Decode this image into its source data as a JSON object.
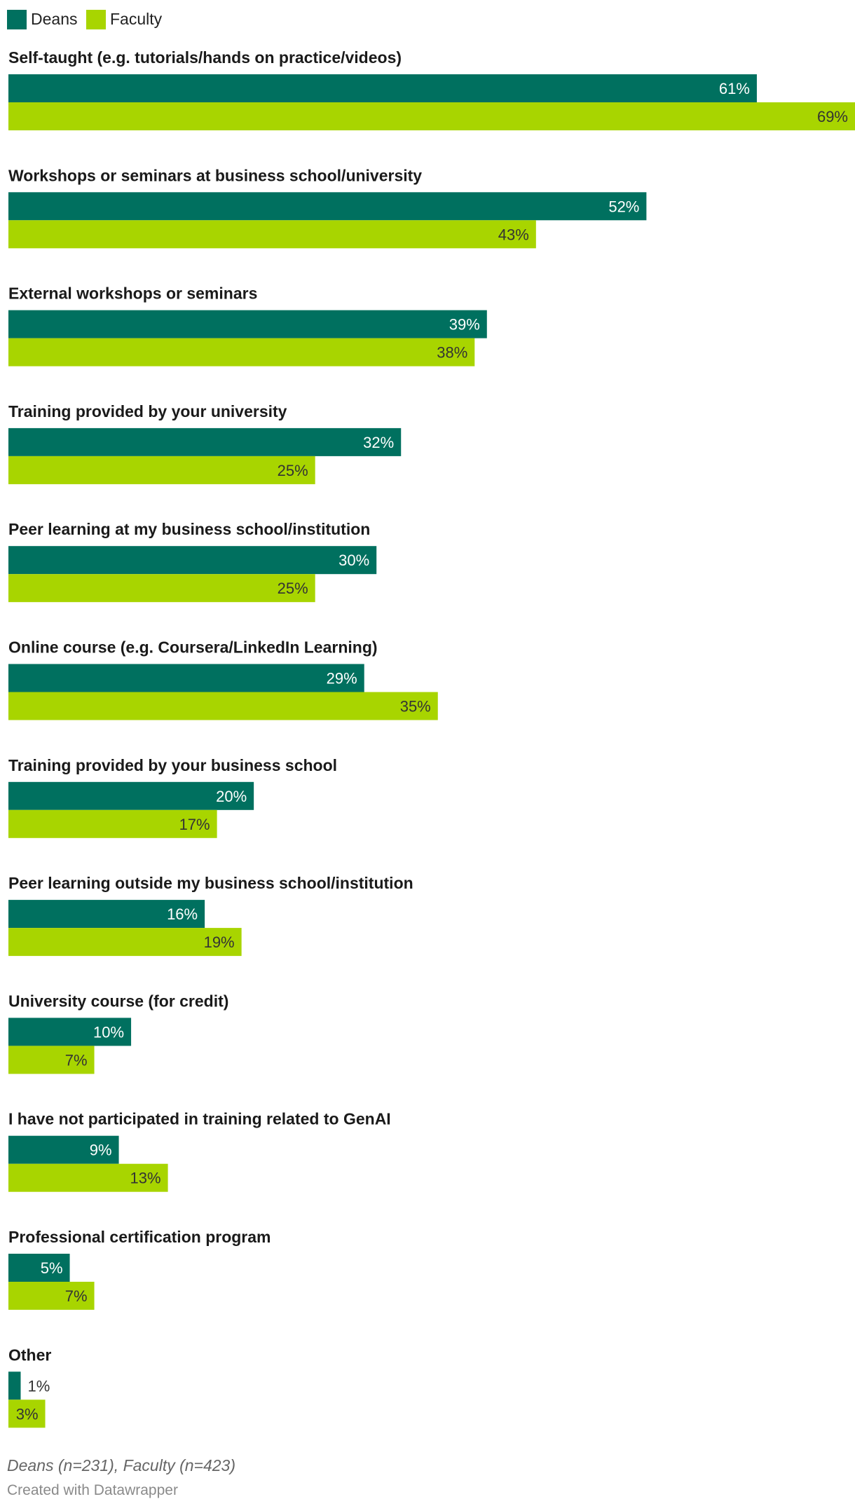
{
  "chart_data": {
    "type": "bar",
    "orientation": "horizontal",
    "grouped": true,
    "categories": [
      "Self-taught (e.g. tutorials/hands on practice/videos)",
      "Workshops or seminars at business school/university",
      "External workshops or seminars",
      "Training provided by your university",
      "Peer learning at my business school/institution",
      "Online course (e.g. Coursera/LinkedIn Learning)",
      "Training provided by your business school",
      "Peer learning outside my business school/institution",
      "University course (for credit)",
      "I have not participated in training related to GenAI",
      "Professional certification program",
      "Other"
    ],
    "series": [
      {
        "name": "Deans",
        "color": "#00705f",
        "label_color": "#ffffff",
        "values": [
          61,
          52,
          39,
          32,
          30,
          29,
          20,
          16,
          10,
          9,
          5,
          1
        ],
        "labels": [
          "61%",
          "52%",
          "39%",
          "32%",
          "30%",
          "29%",
          "20%",
          "16%",
          "10%",
          "9%",
          "5%",
          "1%"
        ]
      },
      {
        "name": "Faculty",
        "color": "#a8d500",
        "label_color": "#333333",
        "values": [
          69,
          43,
          38,
          25,
          25,
          35,
          17,
          19,
          7,
          13,
          7,
          3
        ],
        "labels": [
          "69%",
          "43%",
          "38%",
          "25%",
          "25%",
          "35%",
          "17%",
          "19%",
          "7%",
          "13%",
          "7%",
          "3%"
        ]
      }
    ],
    "value_unit": "%",
    "xlim": [
      0,
      69
    ],
    "legend_position": "top-left",
    "grid": false,
    "axes_visible": false,
    "note": "Deans (n=231), Faculty (n=423)",
    "credit": "Created with Datawrapper"
  }
}
